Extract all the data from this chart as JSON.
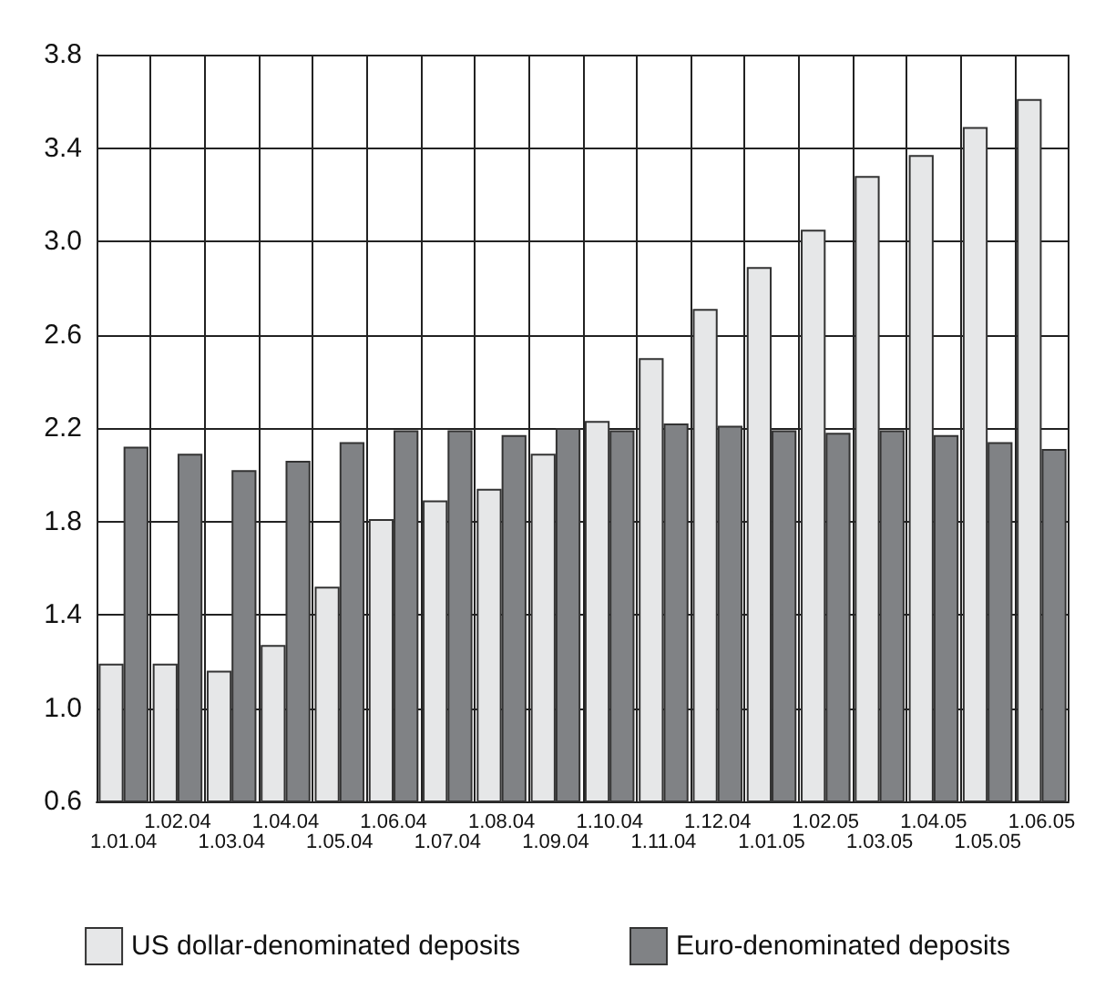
{
  "chart_data": {
    "type": "bar",
    "categories": [
      "1.01.04",
      "1.02.04",
      "1.03.04",
      "1.04.04",
      "1.05.04",
      "1.06.04",
      "1.07.04",
      "1.08.04",
      "1.09.04",
      "1.10.04",
      "1.11.04",
      "1.12.04",
      "1.01.05",
      "1.02.05",
      "1.03.05",
      "1.04.05",
      "1.05.05",
      "1.06.05"
    ],
    "series": [
      {
        "name": "US dollar-denominated deposits",
        "color": "#e6e7e8",
        "values": [
          1.19,
          1.19,
          1.16,
          1.27,
          1.52,
          1.81,
          1.89,
          1.94,
          2.09,
          2.23,
          2.5,
          2.71,
          2.89,
          3.05,
          3.28,
          3.37,
          3.49,
          3.61
        ]
      },
      {
        "name": "Euro-denominated deposits",
        "color": "#808285",
        "values": [
          2.12,
          2.09,
          2.02,
          2.06,
          2.14,
          2.19,
          2.19,
          2.17,
          2.2,
          2.19,
          2.22,
          2.21,
          2.19,
          2.18,
          2.19,
          2.17,
          2.14,
          2.11
        ]
      }
    ],
    "ylim": [
      0.6,
      3.8
    ],
    "yticks": [
      0.6,
      {
        "value": 1,
        "label": "1.0"
      },
      1.4,
      1.8,
      2.2,
      2.6,
      {
        "value": 3,
        "label": "3.0"
      },
      3.4,
      3.8
    ],
    "grid": true,
    "legend": "bottom"
  }
}
